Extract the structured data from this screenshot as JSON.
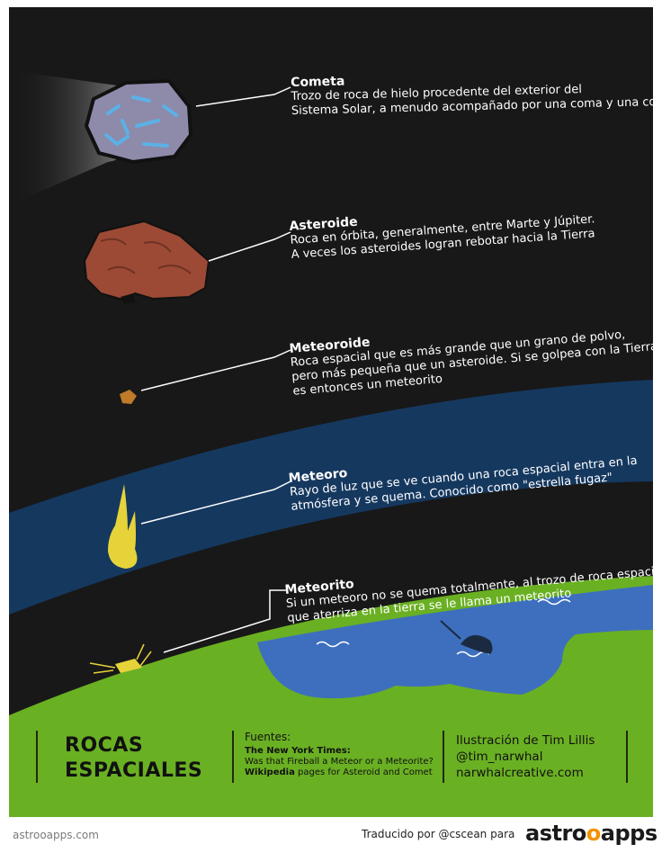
{
  "colors": {
    "frame": "#ffffff",
    "space": "#181818",
    "atmosphere": "#15385f",
    "ground": "#6ab023",
    "water": "#3d6fbe",
    "comet": "#8e8aaa",
    "comet_ice": "#5bb1e6",
    "asteroid": "#9c4a35",
    "meteoroid": "#bf7a2a",
    "meteor_fire": "#e6d33a",
    "accent": "#f39200"
  },
  "items": {
    "comet": {
      "title": "Cometa",
      "line1": "Trozo de roca de hielo procedente del exterior del",
      "line2": "Sistema Solar, a menudo acompañado por una coma y una cola"
    },
    "asteroid": {
      "title": "Asteroide",
      "line1": "Roca en órbita, generalmente, entre Marte y Júpiter.",
      "line2": "A veces los asteroides logran rebotar hacia la Tierra"
    },
    "meteoroid": {
      "title": "Meteoroide",
      "line1": "Roca espacial que es más grande que un grano de polvo,",
      "line2": "pero más pequeña que un asteroide. Si se golpea con la Tierra",
      "line3": "es entonces un meteorito"
    },
    "meteor": {
      "title": "Meteoro",
      "line1": "Rayo de luz que se ve cuando una roca espacial  entra en la",
      "line2": "atmósfera y se quema. Conocido como \"estrella fugaz\""
    },
    "meteorite": {
      "title": "Meteorito",
      "line1": "Si un meteoro no se quema totalmente, al trozo de roca espacial",
      "line2": "que aterriza en la tierra se le llama un meteorito"
    }
  },
  "panel": {
    "title_line1": "ROCAS",
    "title_line2": "ESPACIALES",
    "sources_heading": "Fuentes:",
    "source1_name": "The New York Times:",
    "source1_text": "Was that Fireball a Meteor or a Meteorite?",
    "source2_name": "Wikipedia",
    "source2_text": " pages for Asteroid and Comet",
    "credit_line1": "Ilustración de Tim Lillis",
    "credit_line2": "@tim_narwhal",
    "credit_line3": "narwhalcreative.com"
  },
  "footer": {
    "site": "astrooapps.com",
    "translated": "Traducido por @cscean para",
    "logo_part1": "astro",
    "logo_o": "o",
    "logo_part2": "apps"
  }
}
